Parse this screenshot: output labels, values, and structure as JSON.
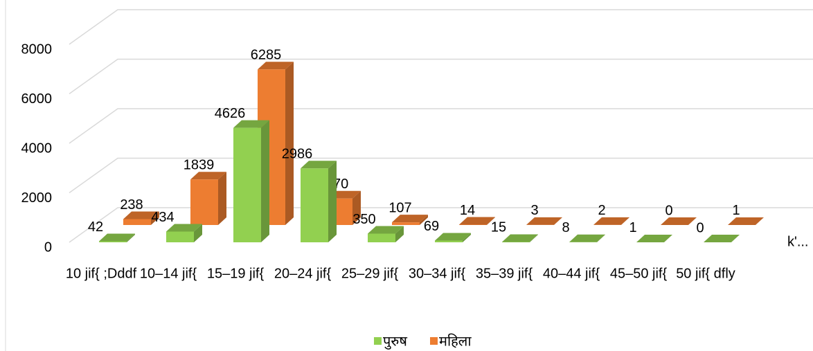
{
  "chart_data": {
    "type": "bar3d",
    "categories": [
      "10 jif{ ;Dddf",
      "10–14 jif{",
      "15–19 jif{",
      "20–24 jif{",
      "25–29 jif{",
      "30–34 jif{",
      "35–39 jif{",
      "40–44 jif{",
      "45–50 jif{",
      "50 jif{ dfly"
    ],
    "series": [
      {
        "name": "पुरुष",
        "color": "#92d050",
        "values": [
          42,
          434,
          4626,
          2986,
          350,
          69,
          15,
          8,
          1,
          0
        ]
      },
      {
        "name": "महिला",
        "color": "#ed7d31",
        "values": [
          238,
          1839,
          6285,
          1070,
          107,
          14,
          3,
          2,
          0,
          1
        ]
      }
    ],
    "depth_label": "k'...",
    "ylim": [
      0,
      8000
    ],
    "yticks": [
      0,
      2000,
      4000,
      6000,
      8000
    ],
    "grid": true,
    "legend": "bottom"
  }
}
